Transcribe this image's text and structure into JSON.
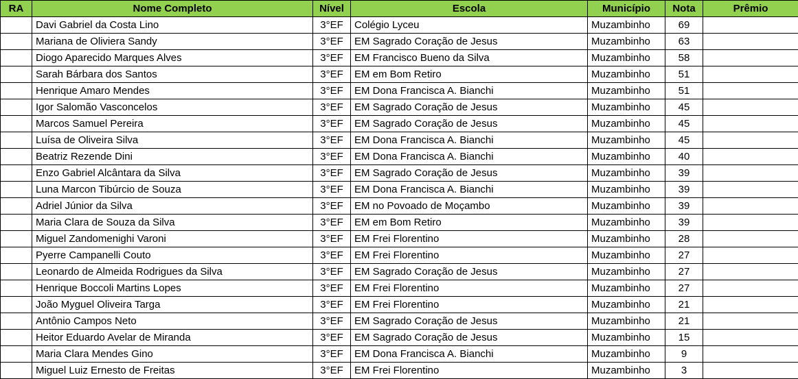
{
  "colors": {
    "header_background": "#92d050",
    "grid_border": "#000000",
    "cell_background": "#ffffff",
    "text": "#000000"
  },
  "table": {
    "columns": [
      {
        "key": "ra",
        "label": "RA"
      },
      {
        "key": "nome",
        "label": "Nome Completo"
      },
      {
        "key": "nivel",
        "label": "Nível"
      },
      {
        "key": "escola",
        "label": "Escola"
      },
      {
        "key": "municipio",
        "label": "Município"
      },
      {
        "key": "nota",
        "label": "Nota"
      },
      {
        "key": "premio",
        "label": "Prêmio"
      }
    ],
    "rows": [
      {
        "ra": "",
        "nome": "Davi Gabriel da Costa Lino",
        "nivel": "3°EF",
        "escola": "Colégio Lyceu",
        "municipio": "Muzambinho",
        "nota": "69",
        "premio": ""
      },
      {
        "ra": "",
        "nome": "Mariana de Oliviera Sandy",
        "nivel": "3°EF",
        "escola": "EM Sagrado Coração de Jesus",
        "municipio": "Muzambinho",
        "nota": "63",
        "premio": ""
      },
      {
        "ra": "",
        "nome": "Diogo Aparecido Marques Alves",
        "nivel": "3°EF",
        "escola": "EM Francisco Bueno da Silva",
        "municipio": "Muzambinho",
        "nota": "58",
        "premio": ""
      },
      {
        "ra": "",
        "nome": "Sarah Bárbara dos Santos",
        "nivel": "3°EF",
        "escola": "EM em Bom Retiro",
        "municipio": "Muzambinho",
        "nota": "51",
        "premio": ""
      },
      {
        "ra": "",
        "nome": "Henrique Amaro Mendes",
        "nivel": "3°EF",
        "escola": "EM Dona Francisca A. Bianchi",
        "municipio": "Muzambinho",
        "nota": "51",
        "premio": ""
      },
      {
        "ra": "",
        "nome": "Igor Salomão Vasconcelos",
        "nivel": "3°EF",
        "escola": "EM Sagrado Coração de Jesus",
        "municipio": "Muzambinho",
        "nota": "45",
        "premio": ""
      },
      {
        "ra": "",
        "nome": "Marcos Samuel Pereira",
        "nivel": "3°EF",
        "escola": "EM Sagrado Coração de Jesus",
        "municipio": "Muzambinho",
        "nota": "45",
        "premio": ""
      },
      {
        "ra": "",
        "nome": "Luísa de Oliveira Silva",
        "nivel": "3°EF",
        "escola": "EM Dona Francisca A. Bianchi",
        "municipio": "Muzambinho",
        "nota": "45",
        "premio": ""
      },
      {
        "ra": "",
        "nome": "Beatriz Rezende Dini",
        "nivel": "3°EF",
        "escola": "EM Dona Francisca A. Bianchi",
        "municipio": "Muzambinho",
        "nota": "40",
        "premio": ""
      },
      {
        "ra": "",
        "nome": "Enzo Gabriel Alcântara da Silva",
        "nivel": "3°EF",
        "escola": "EM Sagrado Coração de Jesus",
        "municipio": "Muzambinho",
        "nota": "39",
        "premio": ""
      },
      {
        "ra": "",
        "nome": "Luna Marcon Tibúrcio de Souza",
        "nivel": "3°EF",
        "escola": "EM Dona Francisca A. Bianchi",
        "municipio": "Muzambinho",
        "nota": "39",
        "premio": ""
      },
      {
        "ra": "",
        "nome": "Adriel Júnior da Silva",
        "nivel": "3°EF",
        "escola": "EM no Povoado de Moçambo",
        "municipio": "Muzambinho",
        "nota": "39",
        "premio": ""
      },
      {
        "ra": "",
        "nome": "Maria Clara de Souza da Silva",
        "nivel": "3°EF",
        "escola": "EM em Bom Retiro",
        "municipio": "Muzambinho",
        "nota": "39",
        "premio": ""
      },
      {
        "ra": "",
        "nome": "Miguel Zandomenighi Varoni",
        "nivel": "3°EF",
        "escola": "EM Frei Florentino",
        "municipio": "Muzambinho",
        "nota": "28",
        "premio": ""
      },
      {
        "ra": "",
        "nome": "Pyerre Campanelli Couto",
        "nivel": "3°EF",
        "escola": "EM Frei Florentino",
        "municipio": "Muzambinho",
        "nota": "27",
        "premio": ""
      },
      {
        "ra": "",
        "nome": "Leonardo de Almeida Rodrigues da Silva",
        "nivel": "3°EF",
        "escola": "EM Sagrado Coração de Jesus",
        "municipio": "Muzambinho",
        "nota": "27",
        "premio": ""
      },
      {
        "ra": "",
        "nome": "Henrique Boccoli Martins Lopes",
        "nivel": "3°EF",
        "escola": "EM Frei Florentino",
        "municipio": "Muzambinho",
        "nota": "27",
        "premio": ""
      },
      {
        "ra": "",
        "nome": "João Myguel Oliveira Targa",
        "nivel": "3°EF",
        "escola": "EM Frei Florentino",
        "municipio": "Muzambinho",
        "nota": "21",
        "premio": ""
      },
      {
        "ra": "",
        "nome": "Antônio Campos Neto",
        "nivel": "3°EF",
        "escola": "EM Sagrado Coração de Jesus",
        "municipio": "Muzambinho",
        "nota": "21",
        "premio": ""
      },
      {
        "ra": "",
        "nome": "Heitor Eduardo Avelar de Miranda",
        "nivel": "3°EF",
        "escola": "EM Sagrado Coração de Jesus",
        "municipio": "Muzambinho",
        "nota": "15",
        "premio": ""
      },
      {
        "ra": "",
        "nome": "Maria Clara Mendes Gino",
        "nivel": "3°EF",
        "escola": "EM Dona Francisca A. Bianchi",
        "municipio": "Muzambinho",
        "nota": "9",
        "premio": ""
      },
      {
        "ra": "",
        "nome": "Miguel Luiz Ernesto de Freitas",
        "nivel": "3°EF",
        "escola": "EM Frei Florentino",
        "municipio": "Muzambinho",
        "nota": "3",
        "premio": ""
      }
    ]
  }
}
